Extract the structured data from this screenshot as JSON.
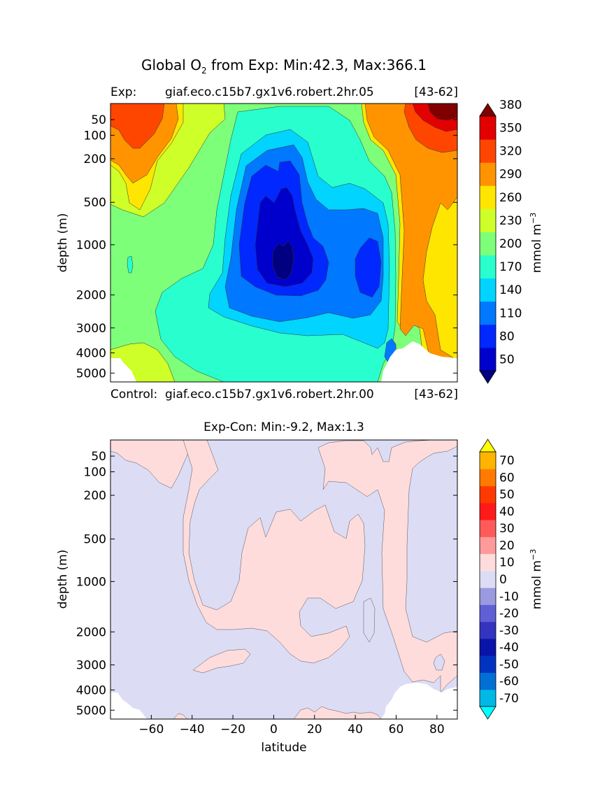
{
  "figure": {
    "title": "Global O",
    "title_sub": "2",
    "title_rest": " from Exp: Min:42.3, Max:366.1"
  },
  "chart_data": [
    {
      "type": "contour",
      "title": "",
      "exp_prefix": "Exp:",
      "exp_name": "giaf.eco.c15b7.gx1v6.robert.2hr.05",
      "exp_years": "[43-62]",
      "control_prefix": "Control:",
      "control_name": "giaf.eco.c15b7.gx1v6.robert.2hr.00",
      "control_years": "[43-62]",
      "ylabel": "depth (m)",
      "yticks": [
        50,
        100,
        200,
        500,
        1000,
        2000,
        3000,
        4000,
        5000
      ],
      "xlim": [
        -80,
        90
      ],
      "ylim": [
        5500,
        0
      ],
      "colorbar": {
        "label": "mmol m",
        "label_sup": "−3",
        "levels": [
          20,
          50,
          80,
          110,
          140,
          170,
          200,
          230,
          260,
          290,
          320,
          350,
          380,
          410
        ],
        "tick_labels": [
          "50",
          "80",
          "110",
          "140",
          "170",
          "200",
          "230",
          "260",
          "290",
          "320",
          "350",
          "380"
        ],
        "colors": [
          "#000080",
          "#0000cd",
          "#0028ff",
          "#0078ff",
          "#00d4ff",
          "#29ffce",
          "#7dff7a",
          "#ceff29",
          "#ffe600",
          "#ff9400",
          "#ff4600",
          "#e30000",
          "#800000"
        ]
      },
      "value_range": {
        "min": 42.3,
        "max": 366.1
      }
    },
    {
      "type": "contour",
      "title": "Exp-Con: Min:-9.2, Max:1.3",
      "xlabel": "latitude",
      "ylabel": "depth (m)",
      "xticks": [
        -60,
        -40,
        -20,
        0,
        20,
        40,
        60,
        80
      ],
      "xtick_labels": [
        "−60",
        "−40",
        "−20",
        "0",
        "20",
        "40",
        "60",
        "80"
      ],
      "yticks": [
        50,
        100,
        200,
        500,
        1000,
        2000,
        3000,
        4000,
        5000
      ],
      "xlim": [
        -80,
        90
      ],
      "ylim": [
        5500,
        0
      ],
      "colorbar": {
        "label": "mmol m",
        "label_sup": "−3",
        "levels": [
          -80,
          -70,
          -60,
          -50,
          -40,
          -30,
          -20,
          -10,
          0,
          10,
          20,
          30,
          40,
          50,
          60,
          70,
          80
        ],
        "tick_labels": [
          "-70",
          "-60",
          "-50",
          "-40",
          "-30",
          "-20",
          "-10",
          "0",
          "10",
          "20",
          "30",
          "40",
          "50",
          "60",
          "70"
        ],
        "colors": [
          "#00ffff",
          "#00b8e6",
          "#0070d4",
          "#0034c0",
          "#0a14a8",
          "#3434c0",
          "#6060d4",
          "#9a9ae0",
          "#dcdcf5",
          "#ffdcdc",
          "#ff9a9a",
          "#ff5a5a",
          "#ff1a1a",
          "#ff3a00",
          "#ff7a00",
          "#ffb400",
          "#ffff00"
        ]
      },
      "value_range": {
        "min": -9.2,
        "max": 1.3
      }
    }
  ]
}
